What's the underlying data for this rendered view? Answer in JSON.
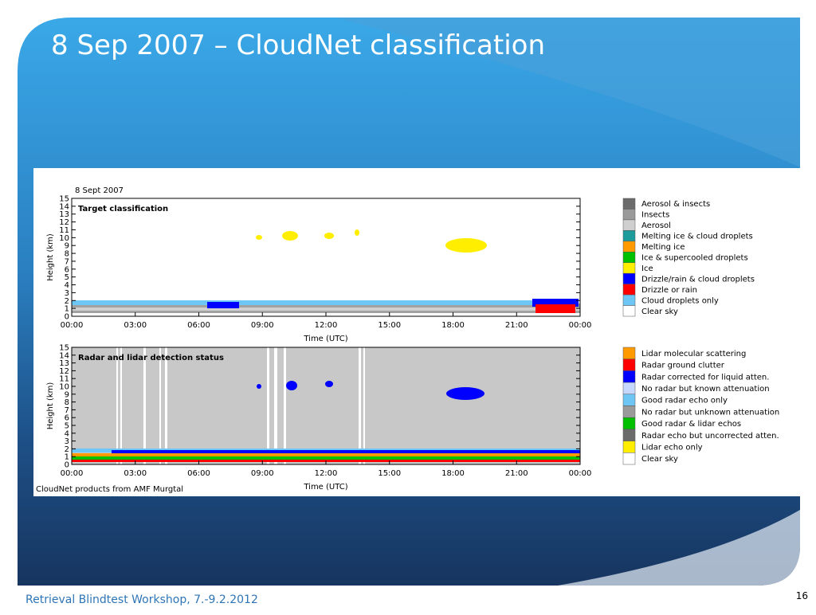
{
  "slide": {
    "title": "8 Sep 2007 – CloudNet classification",
    "footer": "Retrieval Blindtest Workshop, 7.-9.2.2012",
    "page_number": "16"
  },
  "figure": {
    "date": "8 Sept 2007",
    "credit": "CloudNet products from AMF Murgtal",
    "panels": [
      {
        "label": "Target classification",
        "ylabel": "Height (km)",
        "xlabel": "Time (UTC)",
        "yticks": [
          "0",
          "1",
          "2",
          "3",
          "4",
          "5",
          "6",
          "7",
          "8",
          "9",
          "10",
          "11",
          "12",
          "13",
          "14",
          "15"
        ],
        "xticks": [
          "00:00",
          "03:00",
          "06:00",
          "09:00",
          "12:00",
          "15:00",
          "18:00",
          "21:00",
          "00:00"
        ],
        "legend": [
          {
            "name": "Aerosol & insects",
            "color": "#6b6b6b"
          },
          {
            "name": "Insects",
            "color": "#9a9a9a"
          },
          {
            "name": "Aerosol",
            "color": "#cfcfcf"
          },
          {
            "name": "Melting ice & cloud droplets",
            "color": "#1e9c9c"
          },
          {
            "name": "Melting ice",
            "color": "#ff9a00"
          },
          {
            "name": "Ice & supercooled droplets",
            "color": "#00c000"
          },
          {
            "name": "Ice",
            "color": "#ffee00"
          },
          {
            "name": "Drizzle/rain & cloud droplets",
            "color": "#0000ff"
          },
          {
            "name": "Drizzle or rain",
            "color": "#ff0000"
          },
          {
            "name": "Cloud droplets only",
            "color": "#6ec6f5"
          },
          {
            "name": "Clear sky",
            "color": "#ffffff"
          }
        ]
      },
      {
        "label": "Radar and lidar detection status",
        "ylabel": "Height (km)",
        "xlabel": "Time (UTC)",
        "yticks": [
          "0",
          "1",
          "2",
          "3",
          "4",
          "5",
          "6",
          "7",
          "8",
          "9",
          "10",
          "11",
          "12",
          "13",
          "14",
          "15"
        ],
        "xticks": [
          "00:00",
          "03:00",
          "06:00",
          "09:00",
          "12:00",
          "15:00",
          "18:00",
          "21:00",
          "00:00"
        ],
        "legend": [
          {
            "name": "Lidar molecular scattering",
            "color": "#ff9a00"
          },
          {
            "name": "Radar ground clutter",
            "color": "#ff0000"
          },
          {
            "name": "Radar corrected for liquid atten.",
            "color": "#0000ff"
          },
          {
            "name": "No radar but known attenuation",
            "color": "#c6d8ff"
          },
          {
            "name": "Good radar echo only",
            "color": "#6ec6f5"
          },
          {
            "name": "No radar but unknown attenuation",
            "color": "#9a9a9a"
          },
          {
            "name": "Good radar & lidar echos",
            "color": "#00c000"
          },
          {
            "name": "Radar echo but uncorrected atten.",
            "color": "#6b6b6b"
          },
          {
            "name": "Lidar echo only",
            "color": "#ffee00"
          },
          {
            "name": "Clear sky",
            "color": "#ffffff"
          }
        ]
      }
    ]
  }
}
